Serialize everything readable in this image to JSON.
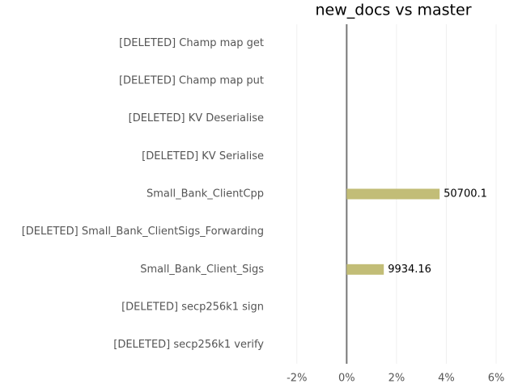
{
  "chart_data": {
    "type": "bar",
    "orientation": "horizontal",
    "title": "new_docs vs master",
    "categories": [
      "[DELETED] Champ map get",
      "[DELETED] Champ map put",
      "[DELETED] KV Deserialise",
      "[DELETED] KV Serialise",
      "Small_Bank_ClientCpp",
      "[DELETED] Small_Bank_ClientSigs_Forwarding",
      "Small_Bank_Client_Sigs",
      "[DELETED] secp256k1 sign",
      "[DELETED] secp256k1 verify"
    ],
    "values": [
      null,
      null,
      null,
      null,
      3.73,
      null,
      1.49,
      null,
      null
    ],
    "bar_annotations": [
      null,
      null,
      null,
      null,
      50700.1,
      null,
      9934.16,
      null,
      null
    ],
    "color": "#c2bd77",
    "xlim": [
      -3,
      6
    ],
    "xticks": [
      {
        "value": -2,
        "label": "-2%"
      },
      {
        "value": 0,
        "label": "0%"
      },
      {
        "value": 2,
        "label": "2%"
      },
      {
        "value": 4,
        "label": "4%"
      },
      {
        "value": 6,
        "label": "6%"
      }
    ],
    "grid": true
  }
}
